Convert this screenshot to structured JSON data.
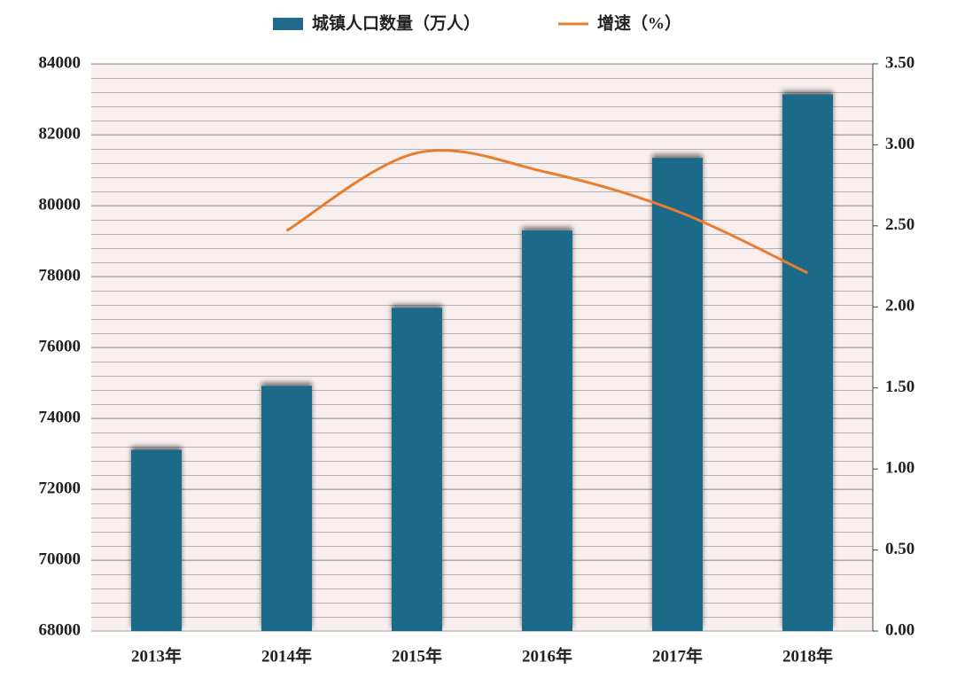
{
  "chart_data": {
    "type": "bar_line",
    "categories": [
      "2013年",
      "2014年",
      "2015年",
      "2016年",
      "2017年",
      "2018年"
    ],
    "series": [
      {
        "name": "城镇人口数量（万人）",
        "color": "#1f6a8a",
        "type": "bar",
        "values": [
          73111,
          74916,
          77116,
          79298,
          81347,
          83137
        ]
      },
      {
        "name": "增速（%）",
        "color": "#e87d2e",
        "type": "line",
        "axis": "y2",
        "values": [
          null,
          2.47,
          2.95,
          2.83,
          2.59,
          2.21
        ]
      }
    ],
    "ylim": [
      68000,
      84000
    ],
    "yticks": [
      68000,
      70000,
      72000,
      74000,
      76000,
      78000,
      80000,
      82000,
      84000
    ],
    "y2lim": [
      0,
      3.5
    ],
    "y2ticks": [
      {
        "value": 0,
        "label": "0.00"
      },
      {
        "value": 0.5,
        "label": "0.50"
      },
      {
        "value": 1,
        "label": "1.00"
      },
      {
        "value": 1.5,
        "label": "1.50"
      },
      {
        "value": 2,
        "label": "2.00"
      },
      {
        "value": 2.5,
        "label": "2.50"
      },
      {
        "value": 3,
        "label": "3.00"
      },
      {
        "value": 3.5,
        "label": "3.50"
      }
    ],
    "grid": true,
    "legend": "top"
  }
}
